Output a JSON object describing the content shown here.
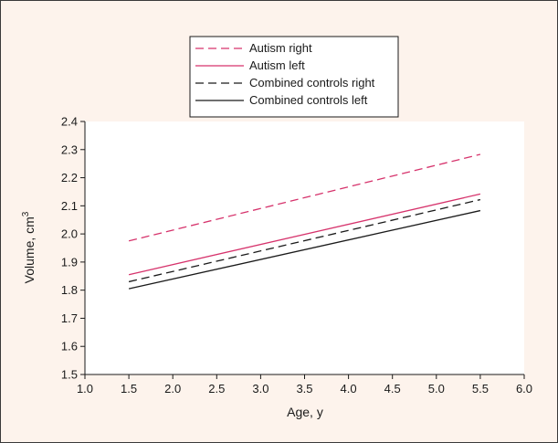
{
  "chart_data": {
    "type": "line",
    "title": "",
    "xlabel": "Age, y",
    "ylabel": "Volume, cm",
    "ylabel_superscript": "3",
    "xlim": [
      1.0,
      6.0
    ],
    "ylim": [
      1.5,
      2.4
    ],
    "xticks": [
      "1.0",
      "1.5",
      "2.0",
      "2.5",
      "3.0",
      "3.5",
      "4.0",
      "4.5",
      "5.0",
      "5.5",
      "6.0"
    ],
    "yticks": [
      "1.5",
      "1.6",
      "1.7",
      "1.8",
      "1.9",
      "2.0",
      "2.1",
      "2.2",
      "2.3",
      "2.4"
    ],
    "grid": false,
    "legend_position": "top-center",
    "series": [
      {
        "name": "Autism right",
        "x": [
          1.5,
          5.5
        ],
        "y": [
          1.975,
          2.283
        ],
        "color": "#d6336c",
        "dash": "dashed"
      },
      {
        "name": "Autism left",
        "x": [
          1.5,
          5.5
        ],
        "y": [
          1.855,
          2.142
        ],
        "color": "#d6336c",
        "dash": "solid"
      },
      {
        "name": "Combined controls right",
        "x": [
          1.5,
          5.5
        ],
        "y": [
          1.83,
          2.122
        ],
        "color": "#1a1a1a",
        "dash": "dashed"
      },
      {
        "name": "Combined controls left",
        "x": [
          1.5,
          5.5
        ],
        "y": [
          1.805,
          2.083
        ],
        "color": "#1a1a1a",
        "dash": "solid"
      }
    ]
  }
}
